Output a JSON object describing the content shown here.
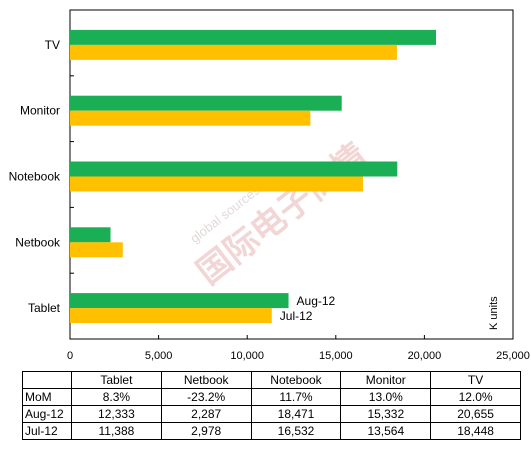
{
  "chart_data": {
    "type": "bar",
    "orientation": "horizontal",
    "categories": [
      "TV",
      "Monitor",
      "Notebook",
      "Netbook",
      "Tablet"
    ],
    "series": [
      {
        "name": "Aug-12",
        "values": [
          20655,
          15332,
          18471,
          2287,
          12333
        ],
        "color": "#1aaf54"
      },
      {
        "name": "Jul-12",
        "values": [
          18448,
          13564,
          16532,
          2978,
          11388
        ],
        "color": "#ffc000"
      }
    ],
    "xlim": [
      0,
      25000
    ],
    "xticks": [
      "0",
      "5,000",
      "10,000",
      "15,000",
      "20,000",
      "25,000"
    ],
    "unit_label": "K units",
    "grid": false
  },
  "watermark": {
    "line1": "global sources",
    "line2": "国际电子商情"
  },
  "table": {
    "headers": [
      "Tablet",
      "Netbook",
      "Notebook",
      "Monitor",
      "TV"
    ],
    "rows": [
      {
        "label": "MoM",
        "cells": [
          "8.3%",
          "-23.2%",
          "11.7%",
          "13.0%",
          "12.0%"
        ]
      },
      {
        "label": "Aug-12",
        "cells": [
          "12,333",
          "2,287",
          "18,471",
          "15,332",
          "20,655"
        ]
      },
      {
        "label": "Jul-12",
        "cells": [
          "11,388",
          "2,978",
          "16,532",
          "13,564",
          "18,448"
        ]
      }
    ]
  }
}
